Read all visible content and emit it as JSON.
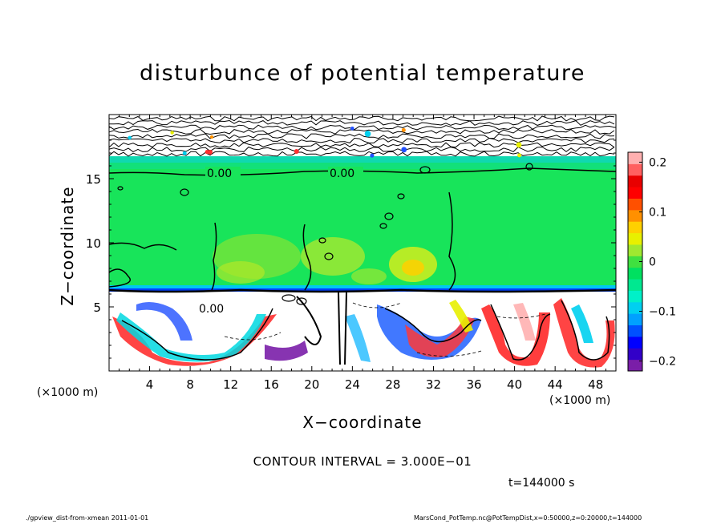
{
  "header": {
    "title": "disturbunce of potential temperature"
  },
  "chart_data": {
    "type": "heatmap",
    "title": "disturbunce of potential temperature",
    "xlabel": "X−coordinate",
    "ylabel": "Z−coordinate",
    "x_unit_left": "(×1000 m)",
    "x_unit_right": "(×1000 m)",
    "xlim": [
      0,
      50
    ],
    "ylim": [
      0,
      20
    ],
    "x_ticks": [
      4,
      8,
      12,
      16,
      20,
      24,
      28,
      32,
      36,
      40,
      44,
      48
    ],
    "x_tick_labels": [
      "4",
      "8",
      "12",
      "16",
      "20",
      "24",
      "28",
      "32",
      "36",
      "40",
      "44",
      "48"
    ],
    "y_ticks": [
      5,
      10,
      15
    ],
    "y_tick_labels": [
      "5",
      "10",
      "15"
    ],
    "colorbar": {
      "range": [
        -0.22,
        0.22
      ],
      "ticks": [
        0.2,
        0.1,
        0,
        -0.1,
        -0.2
      ],
      "tick_labels": [
        "0.2",
        "0.1",
        "0",
        "−0.1",
        "−0.2"
      ],
      "colors": [
        "#7a1ea8",
        "#3200c8",
        "#0000ff",
        "#0050ff",
        "#00a0ff",
        "#00d0f0",
        "#00f0c8",
        "#00e890",
        "#00e060",
        "#40e040",
        "#a0e830",
        "#e8f000",
        "#ffd000",
        "#ff9000",
        "#ff5000",
        "#ff0000",
        "#e80000",
        "#ff6060",
        "#ffb0b0"
      ]
    },
    "contour_labels": [
      "0.00",
      "0.00",
      "0.00"
    ],
    "contour_interval_text": "CONTOUR INTERVAL = 3.000E−01",
    "time_text": "t=144000 s"
  },
  "footer": {
    "left": "./gpview_dist-from-xmean   2011-01-01",
    "right": "MarsCond_PotTemp.nc@PotTempDist,x=0:50000,z=0:20000,t=144000"
  }
}
